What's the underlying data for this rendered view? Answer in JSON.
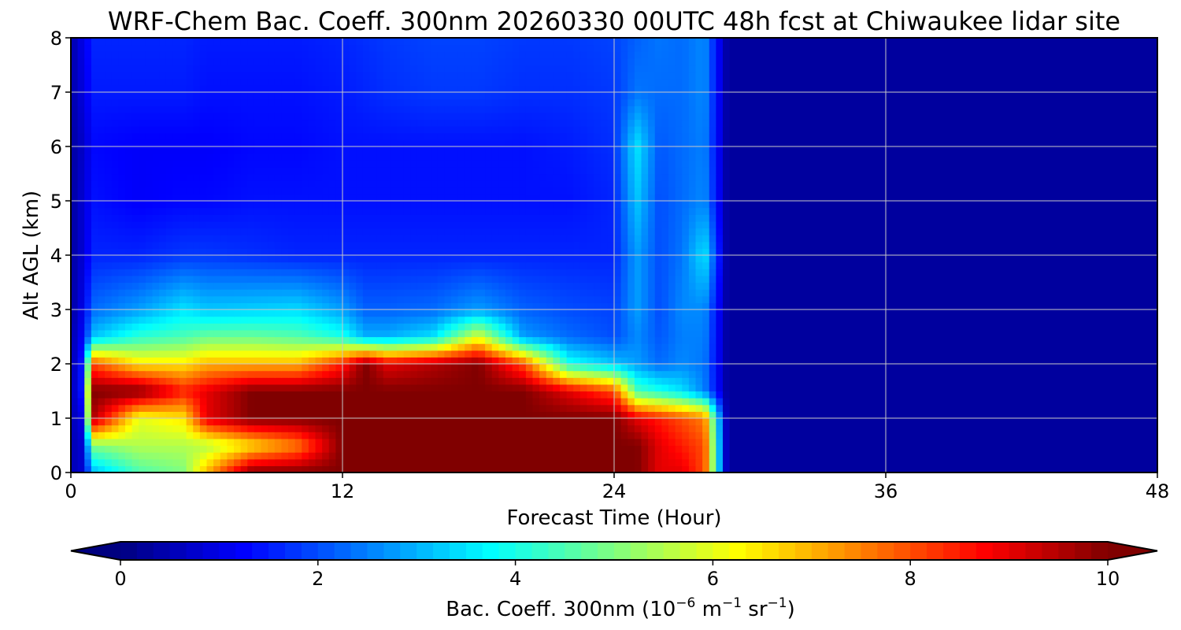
{
  "chart_data": {
    "type": "heatmap",
    "title": "WRF-Chem Bac. Coeff. 300nm  20260330 00UTC 48h fcst at Chiwaukee lidar site",
    "xlabel": "Forecast Time (Hour)",
    "ylabel": "Alt AGL (km)",
    "xlim": [
      0,
      48
    ],
    "ylim": [
      0,
      8
    ],
    "x_ticks": [
      0,
      12,
      24,
      36,
      48
    ],
    "y_ticks": [
      0,
      1,
      2,
      3,
      4,
      5,
      6,
      7,
      8
    ],
    "grid": true,
    "colormap": "jet",
    "colorbar": {
      "label_prefix": "Bac. Coeff. 300nm  (10",
      "label_exp1": "−6",
      "label_mid": " m",
      "label_exp2": "−1",
      "label_mid2": " sr",
      "label_exp3": "−1",
      "label_suffix": ")",
      "range": [
        0,
        10
      ],
      "ticks": [
        0,
        2,
        4,
        6,
        8,
        10
      ],
      "extend": "both",
      "orientation": "horizontal"
    },
    "x": [
      0,
      0.5,
      1,
      3,
      5,
      6,
      8,
      10,
      12,
      13,
      14,
      16,
      18,
      20,
      22,
      24,
      25,
      26,
      27,
      28,
      29,
      48
    ],
    "y": [
      0,
      0.5,
      1,
      1.5,
      2,
      2.5,
      3,
      4,
      5,
      6,
      7,
      8
    ],
    "z": [
      [
        0.5,
        0.8,
        3.0,
        4.5,
        5.0,
        7.0,
        10,
        10,
        10,
        10,
        10,
        10,
        10,
        10,
        10,
        10,
        10,
        9.0,
        9.0,
        8.0,
        0.3,
        0.3
      ],
      [
        0.5,
        0.8,
        5.0,
        5.5,
        5.5,
        5.5,
        6.5,
        7.5,
        10,
        10,
        10,
        10,
        10,
        10,
        10,
        10,
        10,
        9.0,
        8.5,
        8.0,
        0.3,
        0.3
      ],
      [
        0.5,
        1.0,
        9.5,
        6.0,
        6.5,
        9.0,
        10,
        10,
        10,
        10,
        10,
        10,
        10,
        10,
        10,
        10,
        9.0,
        8.5,
        8.0,
        7.5,
        0.3,
        0.3
      ],
      [
        0.5,
        1.5,
        10,
        10,
        8.5,
        9.0,
        10,
        10,
        10,
        10,
        10,
        10,
        10,
        10,
        9.0,
        8.0,
        4.5,
        4.0,
        3.5,
        2.5,
        0.3,
        0.3
      ],
      [
        0.4,
        1.5,
        8.0,
        6.5,
        6.5,
        7.0,
        7.0,
        7.0,
        8.5,
        10,
        9.0,
        9.5,
        10,
        8.0,
        4.0,
        3.2,
        2.8,
        2.3,
        2.6,
        2.4,
        0.3,
        0.3
      ],
      [
        0.4,
        1.2,
        3.2,
        4.2,
        4.5,
        4.8,
        4.8,
        4.6,
        4.0,
        3.0,
        3.0,
        3.5,
        6.0,
        2.8,
        2.3,
        2.0,
        2.6,
        2.1,
        2.5,
        2.5,
        0.3,
        0.3
      ],
      [
        0.3,
        1.0,
        2.3,
        2.8,
        3.5,
        3.2,
        3.3,
        3.4,
        2.8,
        2.2,
        2.2,
        2.3,
        2.8,
        2.2,
        2.0,
        1.9,
        2.8,
        2.0,
        2.6,
        2.6,
        0.3,
        0.3
      ],
      [
        0.3,
        0.8,
        1.6,
        1.6,
        1.8,
        1.8,
        1.7,
        1.6,
        1.6,
        1.6,
        1.6,
        1.6,
        1.6,
        1.6,
        1.6,
        1.6,
        2.8,
        2.0,
        2.4,
        3.5,
        0.3,
        0.3
      ],
      [
        0.3,
        0.8,
        1.4,
        1.2,
        1.3,
        1.3,
        1.4,
        1.4,
        1.4,
        1.4,
        1.4,
        1.4,
        1.4,
        1.4,
        1.4,
        1.6,
        3.2,
        2.0,
        2.3,
        2.6,
        0.3,
        0.3
      ],
      [
        0.3,
        0.7,
        1.3,
        1.2,
        1.2,
        1.2,
        1.3,
        1.3,
        1.4,
        1.4,
        1.4,
        1.4,
        1.4,
        1.4,
        1.5,
        1.7,
        3.5,
        2.1,
        2.3,
        2.5,
        0.3,
        0.3
      ],
      [
        0.4,
        0.9,
        1.5,
        1.5,
        1.5,
        1.4,
        1.4,
        1.4,
        1.5,
        1.6,
        1.7,
        1.8,
        1.8,
        1.7,
        1.7,
        1.8,
        2.4,
        2.3,
        2.3,
        2.6,
        0.3,
        0.3
      ],
      [
        0.4,
        1.0,
        1.6,
        1.6,
        1.6,
        1.5,
        1.5,
        1.5,
        1.6,
        1.7,
        1.8,
        1.9,
        1.9,
        1.8,
        1.8,
        1.9,
        2.2,
        2.4,
        2.3,
        2.6,
        0.3,
        0.3
      ]
    ]
  }
}
